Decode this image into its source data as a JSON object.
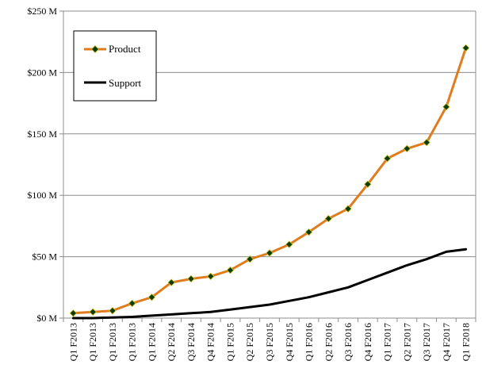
{
  "chart_data": {
    "type": "line",
    "title": "",
    "xlabel": "",
    "ylabel": "",
    "categories": [
      "Q1 F2013",
      "Q1 F2013",
      "Q1 F2013",
      "Q1 F2013",
      "Q1 F2014",
      "Q2 F2014",
      "Q3 F2014",
      "Q4 F2014",
      "Q1 F2015",
      "Q2 F2015",
      "Q3 F2015",
      "Q4 F2015",
      "Q1 F2016",
      "Q2 F2016",
      "Q3 F2016",
      "Q4 F2016",
      "Q1 F2017",
      "Q2 F2017",
      "Q3 F2017",
      "Q4 F2017",
      "Q1 F2018"
    ],
    "series": [
      {
        "name": "Product",
        "color": "#E07C1E",
        "marker": "diamond",
        "marker_color": "#0b3d0b",
        "values": [
          4,
          5,
          6,
          12,
          17,
          29,
          32,
          34,
          39,
          48,
          53,
          60,
          70,
          81,
          89,
          109,
          130,
          138,
          143,
          172,
          220
        ]
      },
      {
        "name": "Support",
        "color": "#000000",
        "marker": "none",
        "values": [
          0,
          0,
          0.5,
          1,
          2,
          3,
          4,
          5,
          7,
          9,
          11,
          14,
          17,
          21,
          25,
          31,
          37,
          43,
          48,
          54,
          56
        ]
      }
    ],
    "ylim": [
      0,
      250
    ],
    "yticks": [
      0,
      50,
      100,
      150,
      200,
      250
    ],
    "ytick_labels": [
      "$0 M",
      "$50 M",
      "$100 M",
      "$150 M",
      "$200 M",
      "$250 M"
    ],
    "grid": true,
    "legend_position": "top-left"
  }
}
